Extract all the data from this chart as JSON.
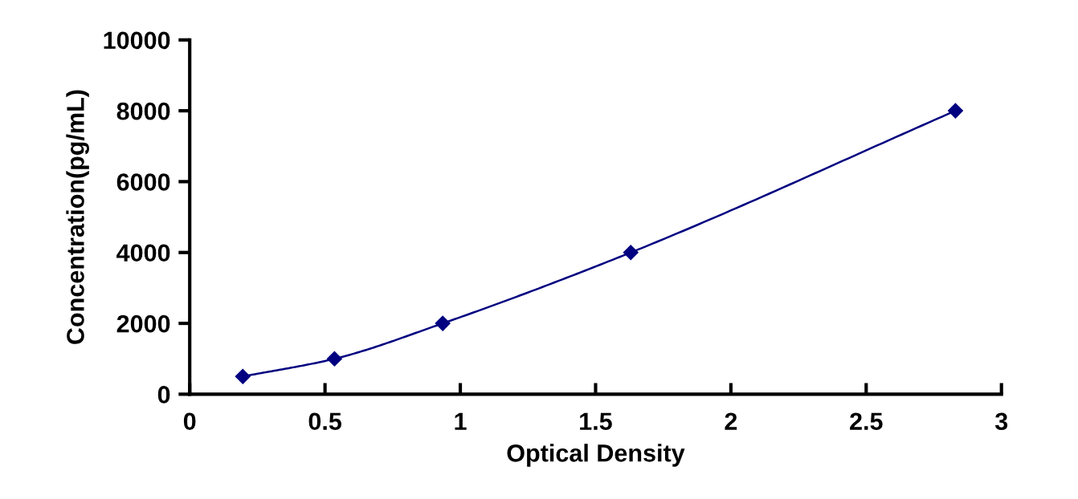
{
  "chart_data": {
    "type": "line",
    "xlabel": "Optical Density",
    "ylabel": "Concentration(pg/mL)",
    "x": [
      0.196,
      0.535,
      0.935,
      1.63,
      2.83
    ],
    "series": [
      {
        "color": "#000080",
        "values": [
          500,
          1000,
          2000,
          4000,
          8000
        ]
      }
    ],
    "marker": "diamond",
    "line_style": "solid",
    "grid": false,
    "legend": false,
    "xlim": [
      0,
      3
    ],
    "xticks": [
      0,
      0.5,
      1,
      1.5,
      2,
      2.5,
      3
    ],
    "ylim": [
      0,
      10000
    ],
    "yticks": [
      0,
      2000,
      4000,
      6000,
      8000,
      10000
    ]
  }
}
